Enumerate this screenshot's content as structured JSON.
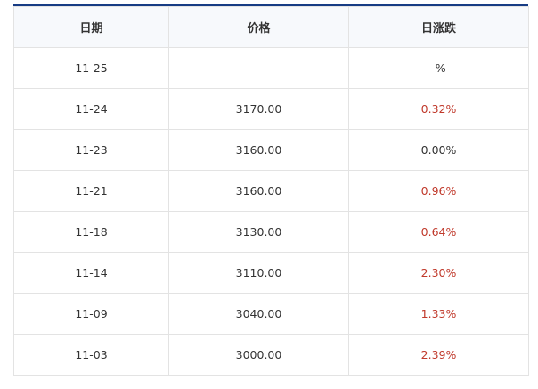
{
  "table": {
    "headers": [
      "日期",
      "价格",
      "日涨跌"
    ],
    "rows": [
      {
        "date": "11-25",
        "price": "-",
        "change": "-%",
        "direction": "flat"
      },
      {
        "date": "11-24",
        "price": "3170.00",
        "change": "0.32%",
        "direction": "up"
      },
      {
        "date": "11-23",
        "price": "3160.00",
        "change": "0.00%",
        "direction": "flat"
      },
      {
        "date": "11-21",
        "price": "3160.00",
        "change": "0.96%",
        "direction": "up"
      },
      {
        "date": "11-18",
        "price": "3130.00",
        "change": "0.64%",
        "direction": "up"
      },
      {
        "date": "11-14",
        "price": "3110.00",
        "change": "2.30%",
        "direction": "up"
      },
      {
        "date": "11-09",
        "price": "3040.00",
        "change": "1.33%",
        "direction": "up"
      },
      {
        "date": "11-03",
        "price": "3000.00",
        "change": "2.39%",
        "direction": "up"
      }
    ]
  },
  "colors": {
    "accent": "#173c84",
    "up": "#c0392b",
    "text": "#333333",
    "header_bg": "#f7f9fc"
  }
}
